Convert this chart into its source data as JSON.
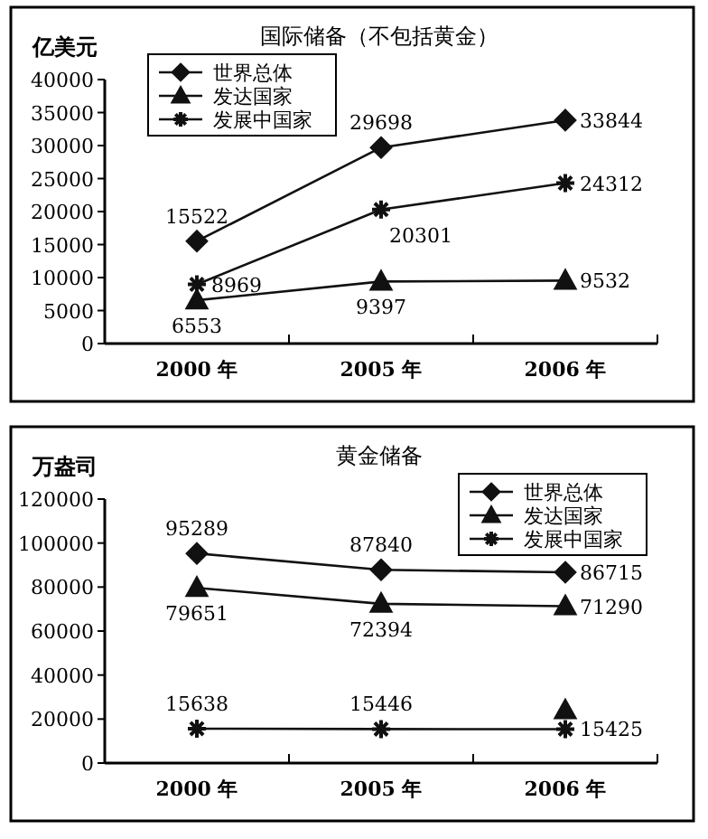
{
  "chart_data": [
    {
      "type": "line",
      "title": "国际储备（不包括黄金）",
      "ylabel": "亿美元",
      "categories": [
        "2000 年",
        "2005 年",
        "2006 年"
      ],
      "ylim": [
        0,
        40000
      ],
      "yticks": [
        0,
        5000,
        10000,
        15000,
        20000,
        25000,
        30000,
        35000,
        40000
      ],
      "legend": "top left",
      "grid": false,
      "series": [
        {
          "name": "世界总体",
          "color": "#111111",
          "marker": "diamond",
          "values": [
            15522,
            29698,
            33844
          ],
          "value_labels": [
            "15522",
            "29698",
            "33844"
          ]
        },
        {
          "name": "发达国家",
          "color": "#111111",
          "marker": "triangle",
          "values": [
            6553,
            9397,
            9532
          ],
          "value_labels": [
            "6553",
            "9397",
            "9532"
          ]
        },
        {
          "name": "发展中国家",
          "color": "#111111",
          "marker": "cross",
          "values": [
            8969,
            20301,
            24312
          ],
          "value_labels": [
            "8969",
            "20301",
            "24312"
          ]
        }
      ]
    },
    {
      "type": "line",
      "title": "黄金储备",
      "ylabel": "万盎司",
      "categories": [
        "2000 年",
        "2005 年",
        "2006 年"
      ],
      "ylim": [
        0,
        120000
      ],
      "yticks": [
        0,
        20000,
        40000,
        60000,
        80000,
        100000,
        120000
      ],
      "legend": "top right",
      "grid": false,
      "series": [
        {
          "name": "世界总体",
          "color": "#111111",
          "marker": "diamond",
          "values": [
            95289,
            87840,
            86715
          ],
          "value_labels": [
            "95289",
            "87840",
            "86715"
          ]
        },
        {
          "name": "发达国家",
          "color": "#111111",
          "marker": "triangle",
          "values": [
            79651,
            72394,
            71290
          ],
          "value_labels": [
            "79651",
            "72394",
            "71290"
          ]
        },
        {
          "name": "发展中国家",
          "color": "#111111",
          "marker": "cross",
          "values": [
            15638,
            15446,
            15425
          ],
          "value_labels": [
            "15638",
            "15446",
            "15425"
          ]
        },
        {
          "type": "scatter",
          "color": "#111111",
          "marker": "triangle",
          "values": [
            null,
            null,
            24000
          ]
        }
      ]
    }
  ]
}
